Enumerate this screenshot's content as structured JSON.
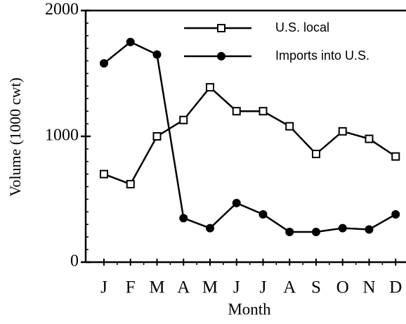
{
  "chart_data": {
    "type": "line",
    "x_label": "Month",
    "y_label": "Volume (1000 cwt)",
    "categories": [
      "J",
      "F",
      "M",
      "A",
      "M",
      "J",
      "J",
      "A",
      "S",
      "O",
      "N",
      "D"
    ],
    "series": [
      {
        "name": "U.S. local",
        "color": "#000000",
        "marker": "square",
        "values": [
          700,
          620,
          1000,
          1130,
          1390,
          1200,
          1200,
          1080,
          860,
          1040,
          980,
          840
        ]
      },
      {
        "name": "Imports into U.S.",
        "color": "#000000",
        "marker": "circle",
        "values": [
          1580,
          1750,
          1650,
          350,
          270,
          470,
          380,
          240,
          240,
          270,
          260,
          380
        ]
      }
    ],
    "ylim": [
      0,
      2000
    ],
    "yticks": [
      0,
      1000,
      2000
    ],
    "grid": false,
    "legend": "upper right"
  }
}
